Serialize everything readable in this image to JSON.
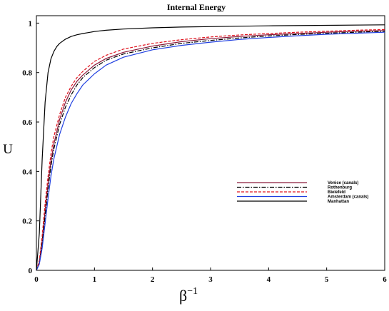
{
  "chart_data": {
    "type": "line",
    "title": "Internal Energy",
    "ylabel": "U",
    "xlabel": {
      "base": "β",
      "sup": "−1"
    },
    "xlim": [
      0,
      6
    ],
    "ylim": [
      0,
      1.03
    ],
    "xticks": [
      "0",
      "1",
      "2",
      "3",
      "4",
      "5",
      "6"
    ],
    "yticks": [
      "0",
      "0.2",
      "0.4",
      "0.6",
      "0.8",
      "1"
    ],
    "legend_position": "center-right",
    "grid": false,
    "series": [
      {
        "name": "Venice (canals)",
        "color": "#8b1a3a",
        "dash": "",
        "x": [
          0,
          0.05,
          0.1,
          0.15,
          0.2,
          0.25,
          0.3,
          0.4,
          0.5,
          0.6,
          0.7,
          0.8,
          1,
          1.2,
          1.5,
          2,
          2.5,
          3,
          3.5,
          4,
          4.5,
          5,
          5.5,
          6
        ],
        "y": [
          0,
          0.03,
          0.12,
          0.24,
          0.35,
          0.44,
          0.51,
          0.61,
          0.68,
          0.73,
          0.765,
          0.79,
          0.83,
          0.857,
          0.882,
          0.907,
          0.925,
          0.937,
          0.946,
          0.953,
          0.958,
          0.963,
          0.967,
          0.97
        ]
      },
      {
        "name": "Rothenburg",
        "color": "#000000",
        "dash": "6,2,1.5,2",
        "x": [
          0,
          0.05,
          0.1,
          0.15,
          0.2,
          0.25,
          0.3,
          0.4,
          0.5,
          0.6,
          0.7,
          0.8,
          1,
          1.2,
          1.5,
          2,
          2.5,
          3,
          3.5,
          4,
          4.5,
          5,
          5.5,
          6
        ],
        "y": [
          0,
          0.03,
          0.11,
          0.22,
          0.33,
          0.42,
          0.49,
          0.59,
          0.66,
          0.71,
          0.75,
          0.78,
          0.82,
          0.85,
          0.875,
          0.9,
          0.918,
          0.93,
          0.94,
          0.948,
          0.954,
          0.959,
          0.963,
          0.967
        ]
      },
      {
        "name": "Bielefeld",
        "color": "#e0141e",
        "dash": "4,2",
        "x": [
          0,
          0.05,
          0.1,
          0.15,
          0.2,
          0.25,
          0.3,
          0.4,
          0.5,
          0.6,
          0.7,
          0.8,
          1,
          1.2,
          1.5,
          2,
          2.5,
          3,
          3.5,
          4,
          4.5,
          5,
          5.5,
          6
        ],
        "y": [
          0,
          0.04,
          0.14,
          0.27,
          0.38,
          0.47,
          0.54,
          0.63,
          0.7,
          0.745,
          0.78,
          0.805,
          0.845,
          0.87,
          0.895,
          0.918,
          0.933,
          0.944,
          0.952,
          0.958,
          0.963,
          0.967,
          0.971,
          0.974
        ]
      },
      {
        "name": "Amsterdam (canals)",
        "color": "#1f3fe0",
        "dash": "",
        "x": [
          0,
          0.05,
          0.1,
          0.15,
          0.2,
          0.25,
          0.3,
          0.4,
          0.5,
          0.6,
          0.7,
          0.8,
          1,
          1.2,
          1.5,
          2,
          2.5,
          3,
          3.5,
          4,
          4.5,
          5,
          5.5,
          6
        ],
        "y": [
          0,
          0.025,
          0.09,
          0.19,
          0.29,
          0.38,
          0.45,
          0.55,
          0.62,
          0.675,
          0.715,
          0.75,
          0.795,
          0.83,
          0.862,
          0.892,
          0.91,
          0.923,
          0.934,
          0.942,
          0.949,
          0.955,
          0.959,
          0.963
        ]
      },
      {
        "name": "Manhattan",
        "color": "#000000",
        "dash": "",
        "x": [
          0,
          0.05,
          0.1,
          0.15,
          0.2,
          0.25,
          0.3,
          0.35,
          0.4,
          0.5,
          0.6,
          0.7,
          0.8,
          1,
          1.2,
          1.5,
          2,
          2.5,
          3,
          4,
          5,
          6
        ],
        "y": [
          0,
          0.15,
          0.45,
          0.68,
          0.8,
          0.855,
          0.885,
          0.905,
          0.918,
          0.935,
          0.946,
          0.953,
          0.958,
          0.966,
          0.971,
          0.976,
          0.981,
          0.984,
          0.986,
          0.989,
          0.991,
          0.993
        ]
      }
    ]
  }
}
